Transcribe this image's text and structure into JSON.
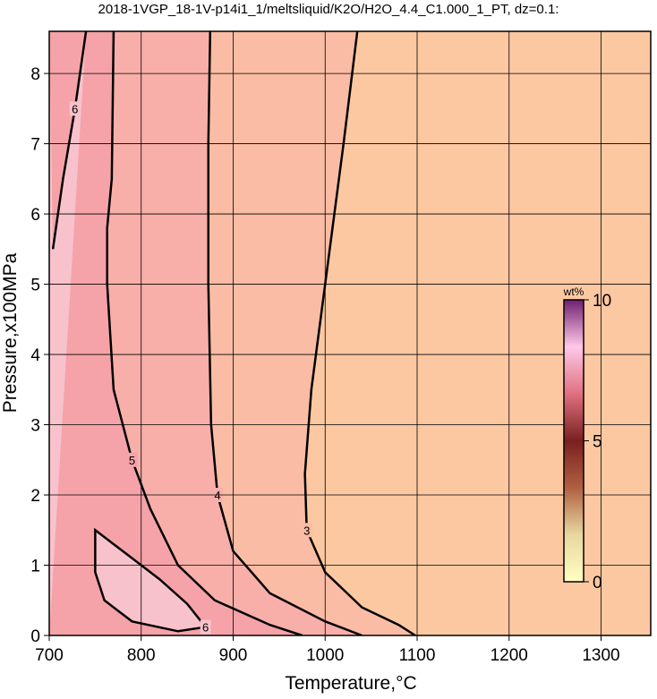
{
  "chart_data": {
    "type": "contour",
    "title": "2018-1VGP_18-1V-p14i1_1/meltsliquid/K2O/H2O_4.4_C1.000_1_PT, dz=0.1:",
    "x_label": "Temperature,°C",
    "y_label": "Pressure,x100MPa",
    "xlim": [
      700,
      1354
    ],
    "ylim": [
      0,
      8.6
    ],
    "xticks": [
      700,
      800,
      900,
      1000,
      1100,
      1200,
      1300
    ],
    "yticks": [
      0,
      1,
      2,
      3,
      4,
      5,
      6,
      7,
      8
    ],
    "grid": true,
    "background_color": "#fcc8a2",
    "contours": [
      {
        "level": 3,
        "fill": "#fabca4",
        "closed": false,
        "x": [
          1035,
          1020,
          1000,
          985,
          978,
          980,
          1000,
          1040,
          1080,
          1098
        ],
        "y": [
          8.6,
          7,
          5,
          3.5,
          2.3,
          1.5,
          0.9,
          0.4,
          0.15,
          0
        ]
      },
      {
        "level": 4,
        "fill": "#f8afa9",
        "closed": false,
        "x": [
          875,
          873,
          873,
          876,
          883,
          900,
          940,
          1000,
          1040
        ],
        "y": [
          8.6,
          7,
          5,
          3,
          2,
          1.2,
          0.6,
          0.2,
          0
        ]
      },
      {
        "level": 5,
        "fill": "#f5a3a8",
        "closed": false,
        "x": [
          770,
          768,
          763,
          763,
          770,
          790,
          810,
          840,
          880,
          940,
          975
        ],
        "y": [
          8.6,
          6.5,
          5.8,
          5,
          3.5,
          2.5,
          1.8,
          1.0,
          0.5,
          0.15,
          0
        ]
      },
      {
        "level": 6,
        "fill": "#f8c2cc",
        "closed": true,
        "x": [
          750,
          750,
          760,
          790,
          840,
          870,
          850,
          820,
          790,
          770
        ],
        "y": [
          1.5,
          0.9,
          0.5,
          0.2,
          0.06,
          0.12,
          0.45,
          0.8,
          1.1,
          1.3
        ]
      },
      {
        "level": 6,
        "fill": "#f8c2cc",
        "closed": false,
        "x": [
          704,
          715,
          728,
          740
        ],
        "y": [
          5.5,
          6.5,
          7.5,
          8.6
        ]
      }
    ],
    "colorbar": {
      "label": "wt%",
      "lim": [
        0,
        10
      ],
      "ticks": [
        0,
        5,
        10
      ],
      "colors": [
        "#ffffc0",
        "#e8d8a0",
        "#b06040",
        "#7a2020",
        "#e07080",
        "#ffc8e8",
        "#702070"
      ]
    }
  }
}
